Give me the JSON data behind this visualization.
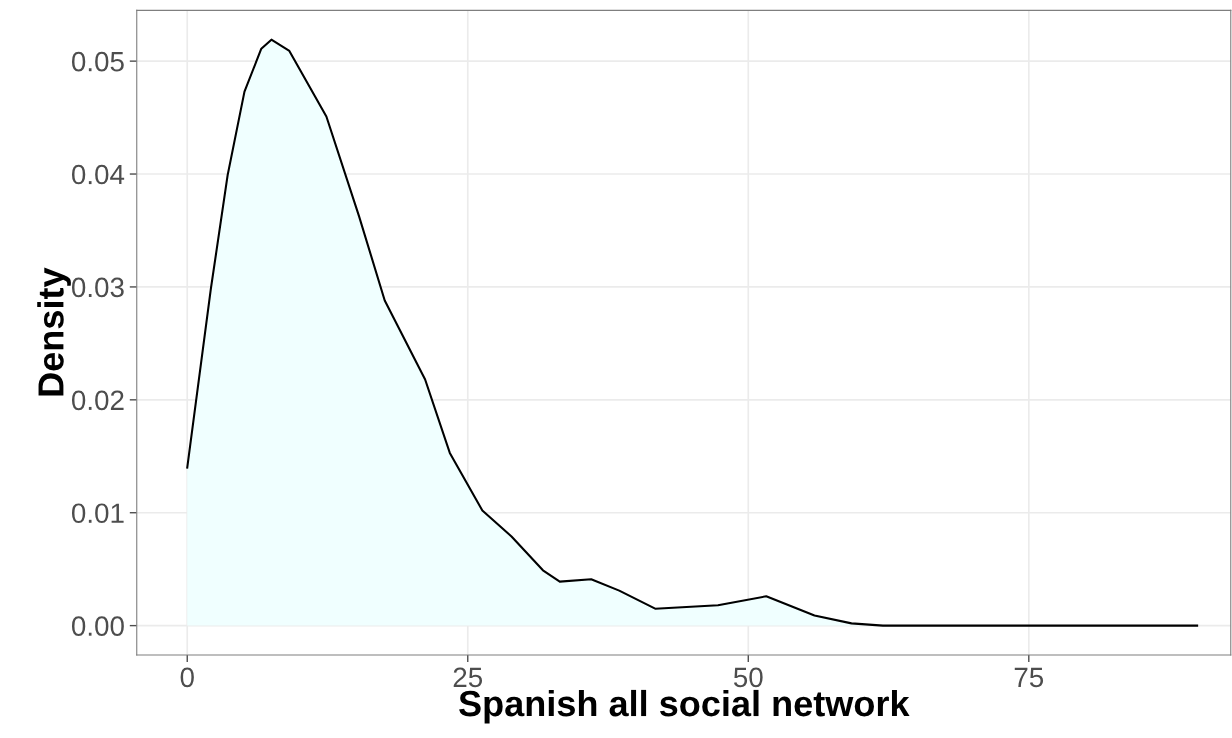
{
  "chart_data": {
    "type": "area",
    "xlabel": "Spanish all social network",
    "ylabel": "Density",
    "x": [
      0,
      2.1,
      3.6,
      5.1,
      6.6,
      7.5,
      9.1,
      12.4,
      15.3,
      17.6,
      21.2,
      23.4,
      26.3,
      28.9,
      31.7,
      33.2,
      36,
      38.5,
      41.7,
      47.3,
      51.6,
      55.9,
      59.2,
      62,
      90
    ],
    "series": [
      {
        "color": "#f0ffff",
        "values": [
          0.014,
          0.0298,
          0.0399,
          0.0473,
          0.0511,
          0.0519,
          0.0509,
          0.0451,
          0.0363,
          0.0288,
          0.0218,
          0.0153,
          0.0102,
          0.0079,
          0.0049,
          0.0039,
          0.0041,
          0.0031,
          0.0015,
          0.0018,
          0.0026,
          0.0009,
          0.0002,
          0,
          0
        ]
      }
    ],
    "xlim": [
      -4.5,
      93
    ],
    "xticks": [
      0,
      25,
      50,
      75
    ],
    "ylim": [
      -0.0026,
      0.0545
    ],
    "yticks": [
      {
        "value": 0,
        "label": "0.00"
      },
      {
        "value": 0.01,
        "label": "0.01"
      },
      {
        "value": 0.02,
        "label": "0.02"
      },
      {
        "value": 0.03,
        "label": "0.03"
      },
      {
        "value": 0.04,
        "label": "0.04"
      },
      {
        "value": 0.05,
        "label": "0.05"
      }
    ],
    "grid": true,
    "legend": false
  }
}
